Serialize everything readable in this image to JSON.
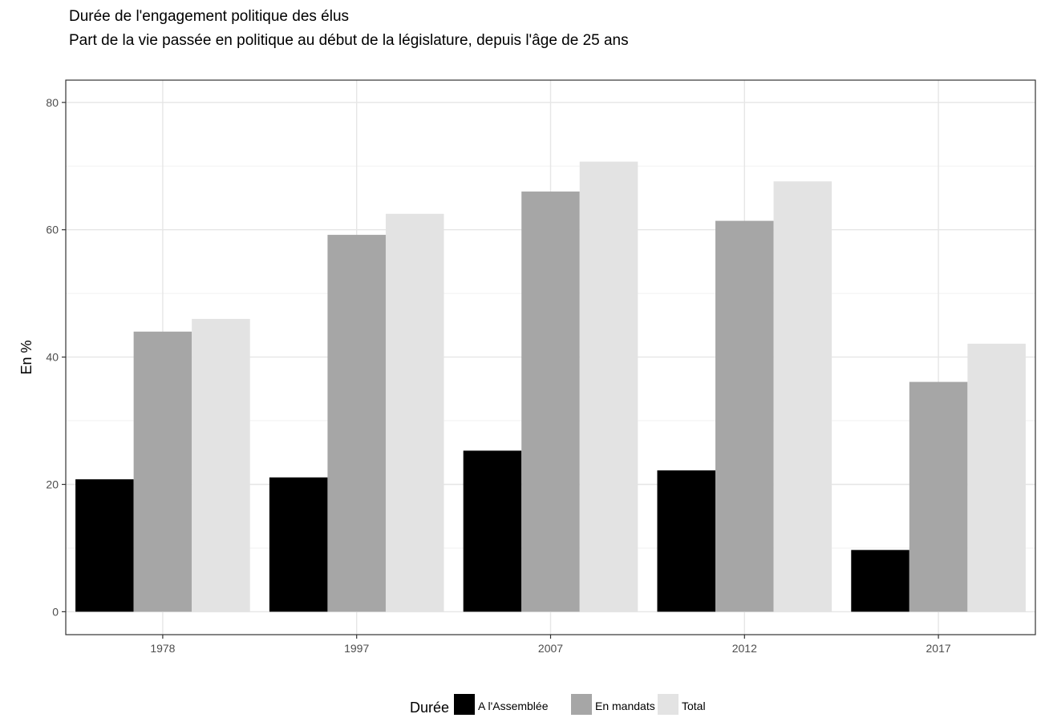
{
  "chart_data": {
    "type": "bar",
    "title": "Durée de l'engagement politique des élus",
    "subtitle": "Part de la vie passée en politique au début de la législature, depuis l'âge de 25 ans",
    "xlabel": "",
    "ylabel": "En %",
    "categories": [
      "1978",
      "1997",
      "2007",
      "2012",
      "2017"
    ],
    "series": [
      {
        "name": "A l'Assemblée",
        "color": "#000000",
        "values": [
          20.8,
          21.1,
          25.3,
          22.2,
          9.7
        ]
      },
      {
        "name": "En mandats",
        "color": "#a6a6a6",
        "values": [
          44.0,
          59.2,
          66.0,
          61.4,
          36.1
        ]
      },
      {
        "name": "Total",
        "color": "#e3e3e3",
        "values": [
          46.0,
          62.5,
          70.7,
          67.6,
          42.1
        ]
      }
    ],
    "ylim": [
      -3.6,
      83.5
    ],
    "yticks": [
      0,
      20,
      40,
      60,
      80
    ],
    "grid": true,
    "legend": {
      "title": "Durée",
      "placement": "bottom"
    }
  }
}
